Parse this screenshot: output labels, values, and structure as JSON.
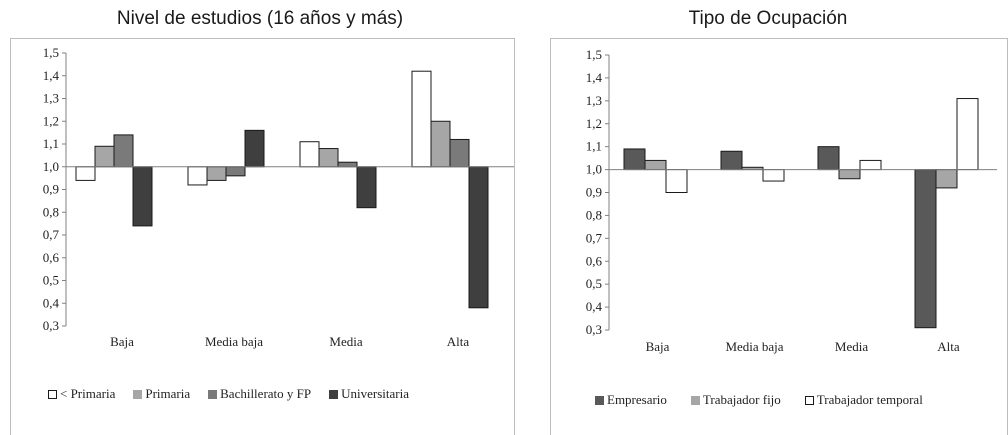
{
  "chart_data": [
    {
      "type": "bar",
      "title": "Nivel de estudios (16 años y más)",
      "categories": [
        "Baja",
        "Media baja",
        "Media",
        "Alta"
      ],
      "series": [
        {
          "name": "< Primaria",
          "values": [
            0.94,
            0.92,
            1.11,
            1.42
          ],
          "color": "#ffffff"
        },
        {
          "name": "Primaria",
          "values": [
            1.09,
            0.94,
            1.08,
            1.2
          ],
          "color": "#a6a6a6"
        },
        {
          "name": "Bachillerato y FP",
          "values": [
            1.14,
            0.96,
            1.02,
            1.12
          ],
          "color": "#7a7a7a"
        },
        {
          "name": "Universitaria",
          "values": [
            0.74,
            1.16,
            0.82,
            0.38
          ],
          "color": "#3f3f3f"
        }
      ],
      "baseline": 1.0,
      "ylim": [
        0.3,
        1.5
      ],
      "yticks": [
        "0,3",
        "0,4",
        "0,5",
        "0,6",
        "0,7",
        "0,8",
        "0,9",
        "1,0",
        "1,1",
        "1,2",
        "1,3",
        "1,4",
        "1,5"
      ],
      "legend_position": "bottom"
    },
    {
      "type": "bar",
      "title": "Tipo de Ocupación",
      "categories": [
        "Baja",
        "Media baja",
        "Media",
        "Alta"
      ],
      "series": [
        {
          "name": "Empresario",
          "values": [
            1.09,
            1.08,
            1.1,
            0.31
          ],
          "color": "#595959"
        },
        {
          "name": "Trabajador fijo",
          "values": [
            1.04,
            1.01,
            0.96,
            0.92
          ],
          "color": "#a6a6a6"
        },
        {
          "name": "Trabajador temporal",
          "values": [
            0.9,
            0.95,
            1.04,
            1.31
          ],
          "color": "#ffffff"
        }
      ],
      "baseline": 1.0,
      "ylim": [
        0.3,
        1.5
      ],
      "yticks": [
        "0,3",
        "0,4",
        "0,5",
        "0,6",
        "0,7",
        "0,8",
        "0,9",
        "1,0",
        "1,1",
        "1,2",
        "1,3",
        "1,4",
        "1,5"
      ],
      "legend_position": "bottom"
    }
  ]
}
